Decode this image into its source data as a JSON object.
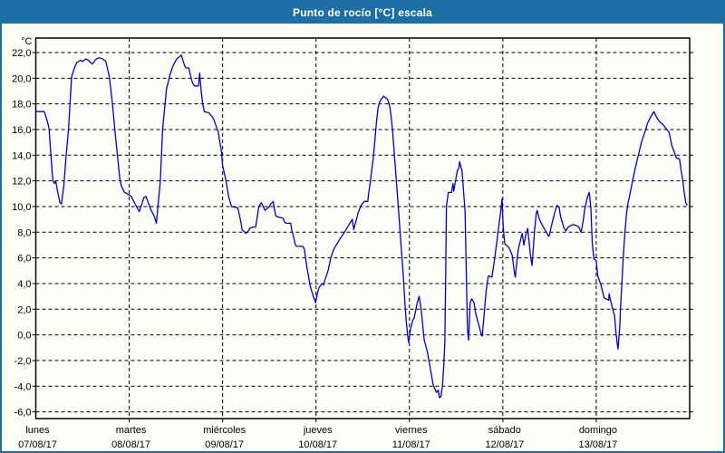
{
  "window": {
    "title": "Punto de rocío [°C] escala"
  },
  "colors": {
    "titlebar_bg": "#1c6ea4",
    "title_text": "#ffffff",
    "frame_border": "#1c6ea4",
    "plot_bg": "#fdfdf8",
    "grid_color": "#000000",
    "axis_text": "#000000",
    "line_color": "#0000cc"
  },
  "chart_data": {
    "type": "line",
    "title": "Punto de rocío [°C] escala",
    "ylabel_unit": "°C",
    "ylim": [
      -6,
      22
    ],
    "y_tick_step": 2,
    "y_tick_labels": [
      "22,0",
      "20,0",
      "18,0",
      "16,0",
      "14,0",
      "12,0",
      "10,0",
      "8,0",
      "6,0",
      "4,0",
      "2,0",
      "0,0",
      "-2,0",
      "-4,0",
      "-6,0"
    ],
    "x_days": [
      {
        "name": "lunes",
        "date": "07/08/17"
      },
      {
        "name": "martes",
        "date": "08/08/17"
      },
      {
        "name": "miércoles",
        "date": "09/08/17"
      },
      {
        "name": "jueves",
        "date": "10/08/17"
      },
      {
        "name": "viernes",
        "date": "11/08/17"
      },
      {
        "name": "sábado",
        "date": "12/08/17"
      },
      {
        "name": "domingo",
        "date": "13/08/17"
      }
    ],
    "x_hours_total": 168,
    "grid": "dashed",
    "legend": "none",
    "series_name": "Punto de rocío",
    "points": [
      [
        0,
        17.4
      ],
      [
        2.2,
        17.4
      ],
      [
        3,
        16.6
      ],
      [
        3.4,
        16.1
      ],
      [
        4,
        13.5
      ],
      [
        4.4,
        12.0
      ],
      [
        4.8,
        11.8
      ],
      [
        5.1,
        12.0
      ],
      [
        5.6,
        11.2
      ],
      [
        6.2,
        10.3
      ],
      [
        6.6,
        10.2
      ],
      [
        7.2,
        11.6
      ],
      [
        7.8,
        14.0
      ],
      [
        8.4,
        16.0
      ],
      [
        9.2,
        20.1
      ],
      [
        9.8,
        20.7
      ],
      [
        10.5,
        21.2
      ],
      [
        11.5,
        21.4
      ],
      [
        12,
        21.3
      ],
      [
        12.8,
        21.5
      ],
      [
        13.5,
        21.4
      ],
      [
        14.5,
        21.1
      ],
      [
        15.5,
        21.5
      ],
      [
        16.3,
        21.6
      ],
      [
        17.2,
        21.5
      ],
      [
        18,
        21.3
      ],
      [
        18.9,
        20.1
      ],
      [
        19.7,
        18.0
      ],
      [
        20.5,
        15.4
      ],
      [
        21,
        13.9
      ],
      [
        21.6,
        12.1
      ],
      [
        22,
        11.6
      ],
      [
        22.8,
        11.1
      ],
      [
        23.5,
        11.0
      ],
      [
        24,
        10.9
      ],
      [
        24.5,
        10.8
      ],
      [
        25.5,
        10.2
      ],
      [
        26.6,
        9.6
      ],
      [
        27.8,
        10.7
      ],
      [
        28.3,
        10.8
      ],
      [
        29.5,
        9.8
      ],
      [
        30.5,
        9.2
      ],
      [
        31,
        8.7
      ],
      [
        32,
        12.0
      ],
      [
        32.6,
        16.1
      ],
      [
        33.6,
        19.2
      ],
      [
        34.5,
        20.3
      ],
      [
        35.3,
        21.0
      ],
      [
        36.2,
        21.5
      ],
      [
        37,
        21.7
      ],
      [
        37.4,
        21.8
      ],
      [
        38.2,
        21.0
      ],
      [
        38.6,
        20.8
      ],
      [
        39.3,
        20.8
      ],
      [
        39.9,
        20.0
      ],
      [
        40.3,
        19.6
      ],
      [
        40.8,
        19.4
      ],
      [
        41.8,
        19.4
      ],
      [
        42.1,
        20.4
      ],
      [
        42.5,
        19.0
      ],
      [
        42.9,
        18.0
      ],
      [
        43.3,
        17.4
      ],
      [
        44.5,
        17.3
      ],
      [
        45.3,
        17.0
      ],
      [
        45.7,
        16.8
      ],
      [
        46.3,
        16.3
      ],
      [
        46.9,
        15.8
      ],
      [
        47.3,
        15.0
      ],
      [
        47.7,
        14.3
      ],
      [
        48,
        13.2
      ],
      [
        48.8,
        12.1
      ],
      [
        49.6,
        10.7
      ],
      [
        50.3,
        10.0
      ],
      [
        51.9,
        9.9
      ],
      [
        52.7,
        8.8
      ],
      [
        53,
        8.2
      ],
      [
        54,
        7.9
      ],
      [
        54.6,
        8.1
      ],
      [
        55,
        8.3
      ],
      [
        55.8,
        8.4
      ],
      [
        56.5,
        8.4
      ],
      [
        57.3,
        10.0
      ],
      [
        57.9,
        10.3
      ],
      [
        58.9,
        9.7
      ],
      [
        60,
        10.0
      ],
      [
        60.4,
        10.2
      ],
      [
        61,
        10.4
      ],
      [
        61.6,
        9.3
      ],
      [
        62,
        9.2
      ],
      [
        63.5,
        9.1
      ],
      [
        63.9,
        8.8
      ],
      [
        64.3,
        8.7
      ],
      [
        65.5,
        8.7
      ],
      [
        65.8,
        8.1
      ],
      [
        66.2,
        7.7
      ],
      [
        66.6,
        7.1
      ],
      [
        67,
        6.9
      ],
      [
        68.6,
        6.9
      ],
      [
        69,
        6.7
      ],
      [
        69.3,
        6.0
      ],
      [
        69.7,
        5.2
      ],
      [
        70.1,
        4.5
      ],
      [
        70.5,
        3.8
      ],
      [
        70.9,
        3.4
      ],
      [
        71.3,
        3.0
      ],
      [
        71.7,
        2.7
      ],
      [
        71.9,
        2.5
      ],
      [
        72.4,
        3.3
      ],
      [
        72.8,
        3.7
      ],
      [
        73.6,
        4.0
      ],
      [
        74,
        3.9
      ],
      [
        74.3,
        4.3
      ],
      [
        75.1,
        5.0
      ],
      [
        75.8,
        6.0
      ],
      [
        76.6,
        6.7
      ],
      [
        77.4,
        7.1
      ],
      [
        78.2,
        7.5
      ],
      [
        78.9,
        7.8
      ],
      [
        79.7,
        8.2
      ],
      [
        80.5,
        8.6
      ],
      [
        81.3,
        9.0
      ],
      [
        81.7,
        8.2
      ],
      [
        82,
        8.6
      ],
      [
        82.4,
        9.0
      ],
      [
        82.8,
        9.5
      ],
      [
        83.2,
        9.8
      ],
      [
        83.6,
        10.1
      ],
      [
        84.4,
        10.4
      ],
      [
        85.3,
        10.4
      ],
      [
        85.5,
        11.0
      ],
      [
        85.9,
        11.8
      ],
      [
        86.3,
        12.8
      ],
      [
        86.7,
        13.7
      ],
      [
        87.1,
        15.1
      ],
      [
        87.5,
        16.5
      ],
      [
        87.9,
        17.6
      ],
      [
        88.3,
        18.1
      ],
      [
        88.6,
        18.3
      ],
      [
        89.4,
        18.6
      ],
      [
        90.2,
        18.4
      ],
      [
        90.6,
        18.2
      ],
      [
        91,
        17.7
      ],
      [
        91.3,
        17.0
      ],
      [
        91.7,
        15.8
      ],
      [
        92.1,
        14.2
      ],
      [
        92.5,
        12.5
      ],
      [
        92.9,
        10.9
      ],
      [
        93.3,
        9.3
      ],
      [
        93.7,
        7.6
      ],
      [
        94.1,
        6.0
      ],
      [
        94.5,
        4.3
      ],
      [
        94.8,
        2.7
      ],
      [
        95.2,
        1.0
      ],
      [
        95.6,
        -0.2
      ],
      [
        95.8,
        -0.6
      ],
      [
        96.2,
        0.3
      ],
      [
        96.8,
        1.1
      ],
      [
        97.2,
        1.3
      ],
      [
        97.6,
        1.9
      ],
      [
        98,
        2.5
      ],
      [
        98.5,
        3.0
      ],
      [
        99,
        2.0
      ],
      [
        99.8,
        -0.4
      ],
      [
        100.6,
        -1.3
      ],
      [
        101.3,
        -2.5
      ],
      [
        102.1,
        -3.9
      ],
      [
        102.5,
        -4.2
      ],
      [
        103,
        -4.5
      ],
      [
        103.4,
        -4.3
      ],
      [
        103.7,
        -4.9
      ],
      [
        104.1,
        -4.8
      ],
      [
        104.5,
        -3.9
      ],
      [
        104.8,
        -2.5
      ],
      [
        105.1,
        -0.5
      ],
      [
        105.3,
        4.0
      ],
      [
        105.5,
        10.0
      ],
      [
        105.9,
        10.9
      ],
      [
        106,
        11.1
      ],
      [
        106.8,
        11.1
      ],
      [
        107.2,
        11.8
      ],
      [
        107.4,
        11.2
      ],
      [
        107.9,
        12.1
      ],
      [
        108.3,
        12.8
      ],
      [
        108.7,
        13.0
      ],
      [
        108.9,
        13.5
      ],
      [
        109.3,
        13.0
      ],
      [
        109.5,
        12.8
      ],
      [
        109.9,
        11.2
      ],
      [
        110.3,
        9.6
      ],
      [
        110.6,
        5.0
      ],
      [
        110.9,
        0.5
      ],
      [
        111.2,
        -0.4
      ],
      [
        111.6,
        2.5
      ],
      [
        112,
        2.8
      ],
      [
        112.6,
        2.5
      ],
      [
        113,
        1.7
      ],
      [
        113.8,
        0.8
      ],
      [
        114.5,
        0.0
      ],
      [
        114.7,
        -0.1
      ],
      [
        115.3,
        2.0
      ],
      [
        115.7,
        3.4
      ],
      [
        116.1,
        4.3
      ],
      [
        116.3,
        4.6
      ],
      [
        117.2,
        4.5
      ],
      [
        117.6,
        5.3
      ],
      [
        118,
        6.2
      ],
      [
        118.4,
        7.1
      ],
      [
        118.8,
        8.1
      ],
      [
        119.2,
        9.0
      ],
      [
        119.6,
        10.0
      ],
      [
        119.8,
        10.6
      ],
      [
        119.9,
        9.8
      ],
      [
        120.1,
        8.4
      ],
      [
        120.5,
        7.1
      ],
      [
        120.9,
        7.0
      ],
      [
        121.6,
        6.8
      ],
      [
        122.4,
        6.2
      ],
      [
        123,
        4.8
      ],
      [
        123.2,
        4.5
      ],
      [
        123.6,
        5.7
      ],
      [
        124,
        6.7
      ],
      [
        124.7,
        7.6
      ],
      [
        125,
        7.9
      ],
      [
        125.4,
        7.0
      ],
      [
        125.9,
        7.8
      ],
      [
        126.3,
        8.2
      ],
      [
        126.4,
        8.3
      ],
      [
        127.1,
        6.2
      ],
      [
        127.5,
        5.4
      ],
      [
        127.8,
        6.7
      ],
      [
        128.2,
        8.3
      ],
      [
        128.6,
        9.5
      ],
      [
        128.8,
        9.7
      ],
      [
        129.4,
        9.0
      ],
      [
        130.2,
        8.5
      ],
      [
        131,
        8.1
      ],
      [
        131.7,
        7.7
      ],
      [
        131.9,
        7.7
      ],
      [
        132.5,
        8.5
      ],
      [
        133.3,
        9.5
      ],
      [
        133.9,
        10.1
      ],
      [
        134.5,
        9.9
      ],
      [
        134.8,
        9.3
      ],
      [
        135.6,
        8.4
      ],
      [
        136.2,
        8.1
      ],
      [
        136.8,
        8.4
      ],
      [
        138,
        8.6
      ],
      [
        139.1,
        8.5
      ],
      [
        139.5,
        8.4
      ],
      [
        140.1,
        8.0
      ],
      [
        140.7,
        9.0
      ],
      [
        141,
        9.7
      ],
      [
        141.4,
        10.3
      ],
      [
        141.8,
        10.8
      ],
      [
        142.2,
        11.1
      ],
      [
        142.6,
        10.0
      ],
      [
        143,
        7.1
      ],
      [
        143.4,
        5.9
      ],
      [
        144,
        5.8
      ],
      [
        144.1,
        5.4
      ],
      [
        144.4,
        4.6
      ],
      [
        145.2,
        3.9
      ],
      [
        146,
        2.9
      ],
      [
        147.2,
        2.7
      ],
      [
        147.3,
        3.2
      ],
      [
        147.9,
        2.4
      ],
      [
        148.7,
        1.5
      ],
      [
        149.1,
        0.1
      ],
      [
        149.5,
        -0.9
      ],
      [
        149.6,
        -1.1
      ],
      [
        150.1,
        0.9
      ],
      [
        150.2,
        2.0
      ],
      [
        150.6,
        4.1
      ],
      [
        151,
        6.4
      ],
      [
        151.4,
        8.1
      ],
      [
        151.8,
        9.5
      ],
      [
        152.2,
        10.3
      ],
      [
        152.6,
        10.9
      ],
      [
        153,
        11.5
      ],
      [
        153.4,
        12.1
      ],
      [
        154.1,
        13.1
      ],
      [
        154.9,
        14.1
      ],
      [
        155.7,
        15.1
      ],
      [
        156.5,
        15.8
      ],
      [
        157.2,
        16.5
      ],
      [
        158,
        17.0
      ],
      [
        158.8,
        17.4
      ],
      [
        159.6,
        16.9
      ],
      [
        160.3,
        16.6
      ],
      [
        161.1,
        16.4
      ],
      [
        161.9,
        16.1
      ],
      [
        162.7,
        15.8
      ],
      [
        163.4,
        14.8
      ],
      [
        164.2,
        14.1
      ],
      [
        164.6,
        13.8
      ],
      [
        165.4,
        13.7
      ],
      [
        165.8,
        12.8
      ],
      [
        166.2,
        12.1
      ],
      [
        166.6,
        11.1
      ],
      [
        167,
        10.3
      ],
      [
        167.4,
        10.1
      ]
    ]
  }
}
